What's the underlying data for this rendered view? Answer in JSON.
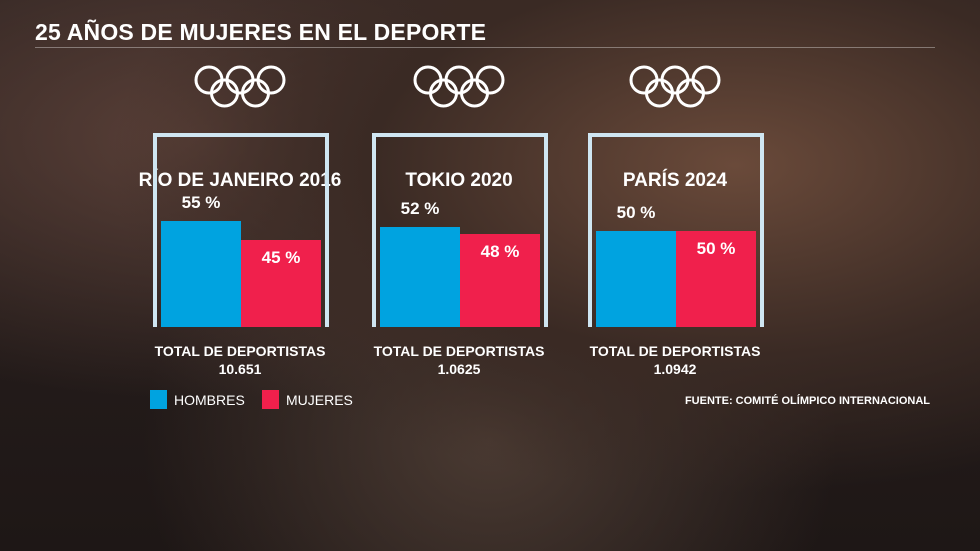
{
  "title": "25 AÑOS DE MUJERES EN EL DEPORTE",
  "colors": {
    "hombres": "#00a3e0",
    "mujeres": "#f0204c"
  },
  "legend": {
    "hombres": "HOMBRES",
    "mujeres": "MUJERES"
  },
  "source": "FUENTE: COMITÉ OLÍMPICO INTERNACIONAL",
  "chart_data": [
    {
      "type": "bar",
      "title": "RÍO DE JANEIRO 2016",
      "categories": [
        "HOMBRES",
        "MUJERES"
      ],
      "values": [
        55,
        45
      ],
      "labels": [
        "55 %",
        "45 %"
      ],
      "total_label": "TOTAL DE DEPORTISTAS",
      "total": "10.651",
      "ylim": [
        0,
        100
      ]
    },
    {
      "type": "bar",
      "title": "TOKIO 2020",
      "categories": [
        "HOMBRES",
        "MUJERES"
      ],
      "values": [
        52,
        48
      ],
      "labels": [
        "52 %",
        "48 %"
      ],
      "total_label": "TOTAL DE DEPORTISTAS",
      "total": "1.0625",
      "ylim": [
        0,
        100
      ]
    },
    {
      "type": "bar",
      "title": "PARÍS 2024",
      "categories": [
        "HOMBRES",
        "MUJERES"
      ],
      "values": [
        50,
        50
      ],
      "labels": [
        "50 %",
        "50 %"
      ],
      "total_label": "TOTAL DE DEPORTISTAS",
      "total": "1.0942",
      "ylim": [
        0,
        100
      ]
    }
  ]
}
